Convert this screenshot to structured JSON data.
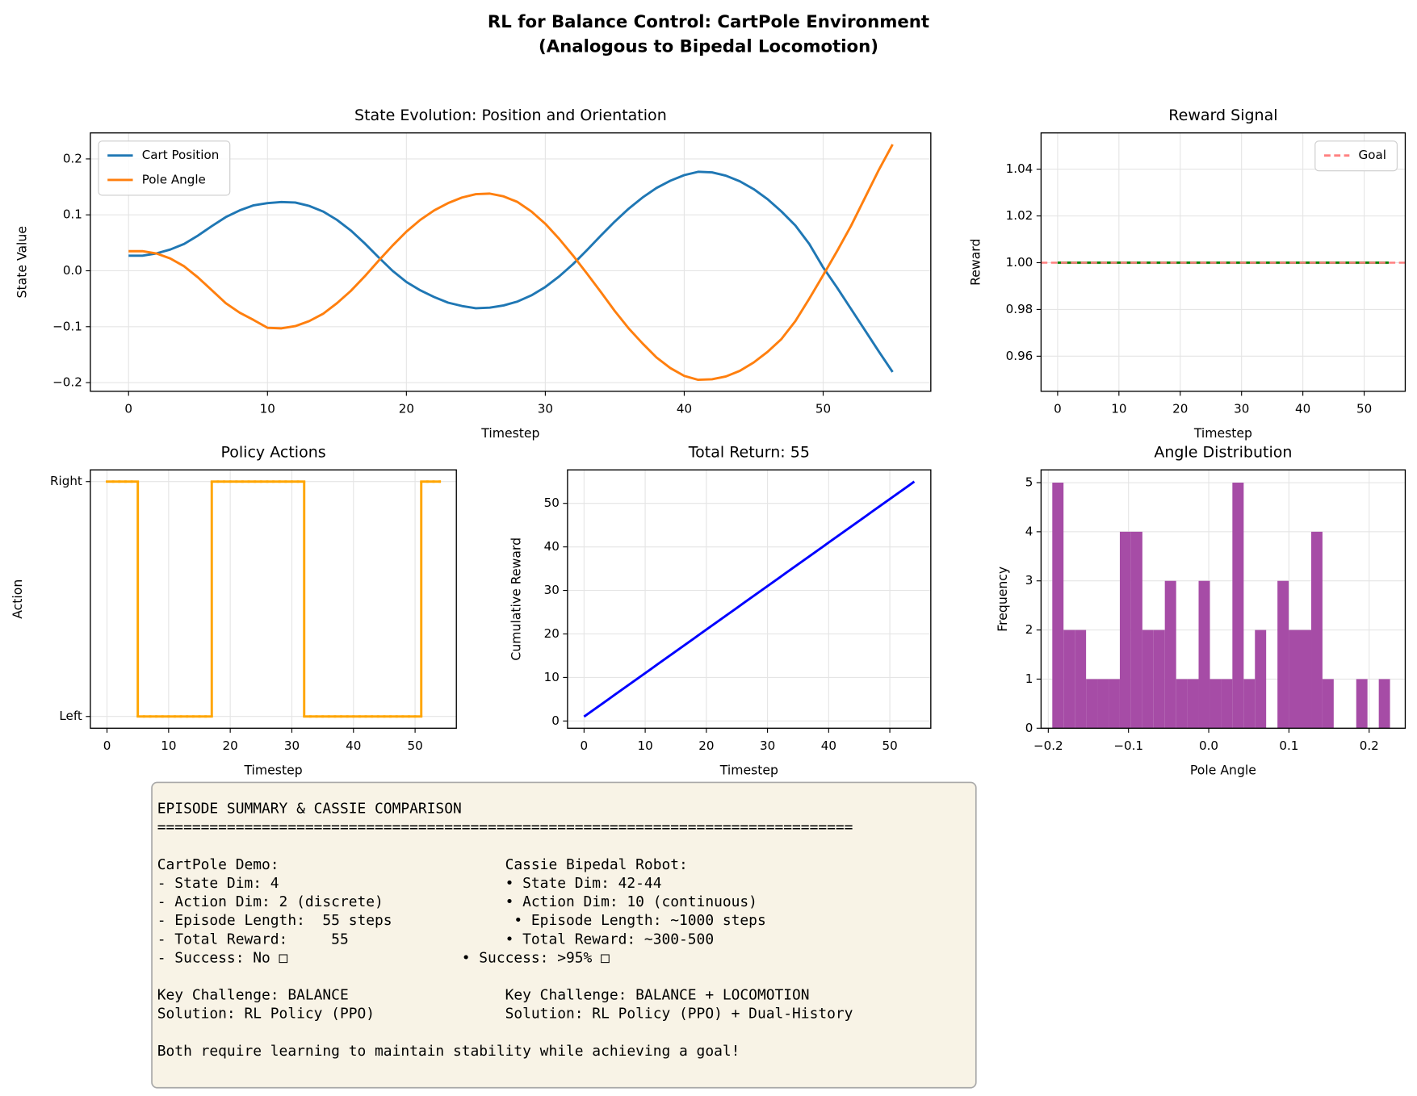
{
  "title": "RL for Balance Control: CartPole Environment",
  "subtitle": "(Analogous to Bipedal Locomotion)",
  "chart_data": [
    {
      "type": "line",
      "title": "State Evolution: Position and Orientation",
      "xlabel": "Timestep",
      "ylabel": "State Value",
      "x": [
        0,
        1,
        2,
        3,
        4,
        5,
        6,
        7,
        8,
        9,
        10,
        11,
        12,
        13,
        14,
        15,
        16,
        17,
        18,
        19,
        20,
        21,
        22,
        23,
        24,
        25,
        26,
        27,
        28,
        29,
        30,
        31,
        32,
        33,
        34,
        35,
        36,
        37,
        38,
        39,
        40,
        41,
        42,
        43,
        44,
        45,
        46,
        47,
        48,
        49,
        50,
        51,
        52,
        53,
        54,
        55
      ],
      "series": [
        {
          "name": "Cart Position",
          "color": "#1f77b4",
          "values": [
            0.027,
            0.027,
            0.031,
            0.038,
            0.048,
            0.063,
            0.08,
            0.096,
            0.108,
            0.117,
            0.121,
            0.123,
            0.122,
            0.116,
            0.106,
            0.091,
            0.072,
            0.049,
            0.024,
            0.0,
            -0.02,
            -0.035,
            -0.047,
            -0.057,
            -0.063,
            -0.067,
            -0.066,
            -0.062,
            -0.055,
            -0.044,
            -0.029,
            -0.01,
            0.012,
            0.037,
            0.063,
            0.088,
            0.111,
            0.131,
            0.148,
            0.161,
            0.171,
            0.177,
            0.176,
            0.17,
            0.16,
            0.146,
            0.128,
            0.106,
            0.081,
            0.048,
            0.006,
            -0.03,
            -0.068,
            -0.106,
            -0.144,
            -0.181
          ]
        },
        {
          "name": "Pole Angle",
          "color": "#ff7f0e",
          "values": [
            0.035,
            0.035,
            0.031,
            0.022,
            0.008,
            -0.012,
            -0.035,
            -0.058,
            -0.075,
            -0.088,
            -0.102,
            -0.103,
            -0.099,
            -0.09,
            -0.077,
            -0.058,
            -0.036,
            -0.01,
            0.018,
            0.045,
            0.07,
            0.091,
            0.108,
            0.121,
            0.131,
            0.137,
            0.138,
            0.133,
            0.123,
            0.106,
            0.084,
            0.057,
            0.027,
            -0.005,
            -0.038,
            -0.072,
            -0.103,
            -0.13,
            -0.155,
            -0.174,
            -0.188,
            -0.195,
            -0.194,
            -0.189,
            -0.179,
            -0.164,
            -0.145,
            -0.122,
            -0.09,
            -0.05,
            -0.008,
            0.035,
            0.08,
            0.13,
            0.18,
            0.226
          ]
        }
      ],
      "xlim": [
        -2.75,
        57.75
      ],
      "ylim": [
        -0.2155,
        0.2465
      ],
      "xticks": [
        0,
        10,
        20,
        30,
        40,
        50
      ],
      "yticks": [
        {
          "value": -0.2,
          "label": "−0.2"
        },
        {
          "value": -0.1,
          "label": "−0.1"
        },
        {
          "value": 0,
          "label": "0.0"
        },
        0.1,
        0.2
      ],
      "grid": true,
      "legend": "upper left"
    },
    {
      "type": "line",
      "title": "Reward Signal",
      "xlabel": "Timestep",
      "ylabel": "Reward",
      "x": [
        0,
        1,
        2,
        3,
        4,
        5,
        6,
        7,
        8,
        9,
        10,
        11,
        12,
        13,
        14,
        15,
        16,
        17,
        18,
        19,
        20,
        21,
        22,
        23,
        24,
        25,
        26,
        27,
        28,
        29,
        30,
        31,
        32,
        33,
        34,
        35,
        36,
        37,
        38,
        39,
        40,
        41,
        42,
        43,
        44,
        45,
        46,
        47,
        48,
        49,
        50,
        51,
        52,
        53,
        54
      ],
      "series": [
        {
          "color": "#008000",
          "values": [
            1,
            1,
            1,
            1,
            1,
            1,
            1,
            1,
            1,
            1,
            1,
            1,
            1,
            1,
            1,
            1,
            1,
            1,
            1,
            1,
            1,
            1,
            1,
            1,
            1,
            1,
            1,
            1,
            1,
            1,
            1,
            1,
            1,
            1,
            1,
            1,
            1,
            1,
            1,
            1,
            1,
            1,
            1,
            1,
            1,
            1,
            1,
            1,
            1,
            1,
            1,
            1,
            1,
            1,
            1
          ]
        },
        {
          "name": "Goal",
          "kind": "hline",
          "value": 1,
          "color": "#ff8080",
          "dashed": true
        }
      ],
      "xlim": [
        -2.7,
        56.7
      ],
      "ylim": [
        0.945,
        1.0555
      ],
      "xticks": [
        0,
        10,
        20,
        30,
        40,
        50
      ],
      "yticks": [
        0.96,
        0.98,
        {
          "value": 1,
          "label": "1.00"
        },
        1.02,
        1.04
      ],
      "grid": true,
      "legend": "upper right"
    },
    {
      "type": "step",
      "title": "Policy Actions",
      "xlabel": "Timestep",
      "ylabel": "Action",
      "x": [
        0,
        1,
        2,
        3,
        4,
        5,
        6,
        7,
        8,
        9,
        10,
        11,
        12,
        13,
        14,
        15,
        16,
        17,
        18,
        19,
        20,
        21,
        22,
        23,
        24,
        25,
        26,
        27,
        28,
        29,
        30,
        31,
        32,
        33,
        34,
        35,
        36,
        37,
        38,
        39,
        40,
        41,
        42,
        43,
        44,
        45,
        46,
        47,
        48,
        49,
        50,
        51,
        52,
        53,
        54
      ],
      "values": [
        1,
        1,
        1,
        1,
        1,
        0,
        0,
        0,
        0,
        0,
        0,
        0,
        0,
        0,
        0,
        0,
        0,
        1,
        1,
        1,
        1,
        1,
        1,
        1,
        1,
        1,
        1,
        1,
        1,
        1,
        1,
        1,
        0,
        0,
        0,
        0,
        0,
        0,
        0,
        0,
        0,
        0,
        0,
        0,
        0,
        0,
        0,
        0,
        0,
        0,
        0,
        1,
        1,
        1,
        1
      ],
      "color": "#ffa500",
      "xlim": [
        -2.7,
        56.7
      ],
      "ylim": [
        -0.05,
        1.05
      ],
      "xticks": [
        0,
        10,
        20,
        30,
        40,
        50
      ],
      "yticks": [
        {
          "value": 0,
          "label": "Left"
        },
        {
          "value": 1,
          "label": "Right"
        }
      ],
      "grid": true
    },
    {
      "type": "line",
      "title": "Total Return: 55",
      "xlabel": "Timestep",
      "ylabel": "Cumulative Reward",
      "x": [
        0,
        1,
        2,
        3,
        4,
        5,
        6,
        7,
        8,
        9,
        10,
        11,
        12,
        13,
        14,
        15,
        16,
        17,
        18,
        19,
        20,
        21,
        22,
        23,
        24,
        25,
        26,
        27,
        28,
        29,
        30,
        31,
        32,
        33,
        34,
        35,
        36,
        37,
        38,
        39,
        40,
        41,
        42,
        43,
        44,
        45,
        46,
        47,
        48,
        49,
        50,
        51,
        52,
        53,
        54
      ],
      "series": [
        {
          "color": "#0000ff",
          "values": [
            1,
            2,
            3,
            4,
            5,
            6,
            7,
            8,
            9,
            10,
            11,
            12,
            13,
            14,
            15,
            16,
            17,
            18,
            19,
            20,
            21,
            22,
            23,
            24,
            25,
            26,
            27,
            28,
            29,
            30,
            31,
            32,
            33,
            34,
            35,
            36,
            37,
            38,
            39,
            40,
            41,
            42,
            43,
            44,
            45,
            46,
            47,
            48,
            49,
            50,
            51,
            52,
            53,
            54,
            55
          ]
        }
      ],
      "xlim": [
        -2.7,
        56.7
      ],
      "ylim": [
        -1.66,
        57.7
      ],
      "xticks": [
        0,
        10,
        20,
        30,
        40,
        50
      ],
      "yticks": [
        0,
        10,
        20,
        30,
        40,
        50
      ],
      "grid": true
    },
    {
      "type": "histogram",
      "title": "Angle Distribution",
      "xlabel": "Pole Angle",
      "ylabel": "Frequency",
      "bins": [
        -0.195,
        -0.181,
        -0.1669,
        -0.1529,
        -0.1389,
        -0.1248,
        -0.1108,
        -0.0968,
        -0.0827,
        -0.0687,
        -0.0547,
        -0.0406,
        -0.0266,
        -0.0126,
        0.0015,
        0.0155,
        0.0295,
        0.0436,
        0.0576,
        0.0716,
        0.0857,
        0.0997,
        0.1137,
        0.1278,
        0.1418,
        0.1558,
        0.1699,
        0.1839,
        0.1979,
        0.212,
        0.226
      ],
      "values": [
        5,
        2,
        2,
        1,
        1,
        1,
        4,
        4,
        2,
        2,
        3,
        1,
        1,
        3,
        1,
        1,
        5,
        1,
        2,
        0,
        3,
        2,
        2,
        4,
        1,
        0,
        0,
        1,
        0,
        1
      ],
      "color": "#a64ca6",
      "xlim": [
        -0.209,
        0.245
      ],
      "ylim": [
        0,
        5.26
      ],
      "xticks": [
        {
          "value": -0.2,
          "label": "−0.2"
        },
        {
          "value": -0.1,
          "label": "−0.1"
        },
        {
          "value": 0,
          "label": "0.0"
        },
        0.1,
        0.2
      ],
      "yticks": [
        0,
        1,
        2,
        3,
        4,
        5
      ],
      "grid": true
    }
  ],
  "summary_box": {
    "text": "EPISODE SUMMARY & CASSIE COMPARISON\n================================================================================\n\nCartPole Demo:                          Cassie Bipedal Robot:\n- State Dim: 4                          • State Dim: 42-44\n- Action Dim: 2 (discrete)              • Action Dim: 10 (continuous)\n- Episode Length:  55 steps              • Episode Length: ~1000 steps\n- Total Reward:     55                  • Total Reward: ~300-500\n- Success: No □                    • Success: >95% □\n\nKey Challenge: BALANCE                  Key Challenge: BALANCE + LOCOMOTION\nSolution: RL Policy (PPO)               Solution: RL Policy (PPO) + Dual-History\n\nBoth require learning to maintain stability while achieving a goal!"
  }
}
